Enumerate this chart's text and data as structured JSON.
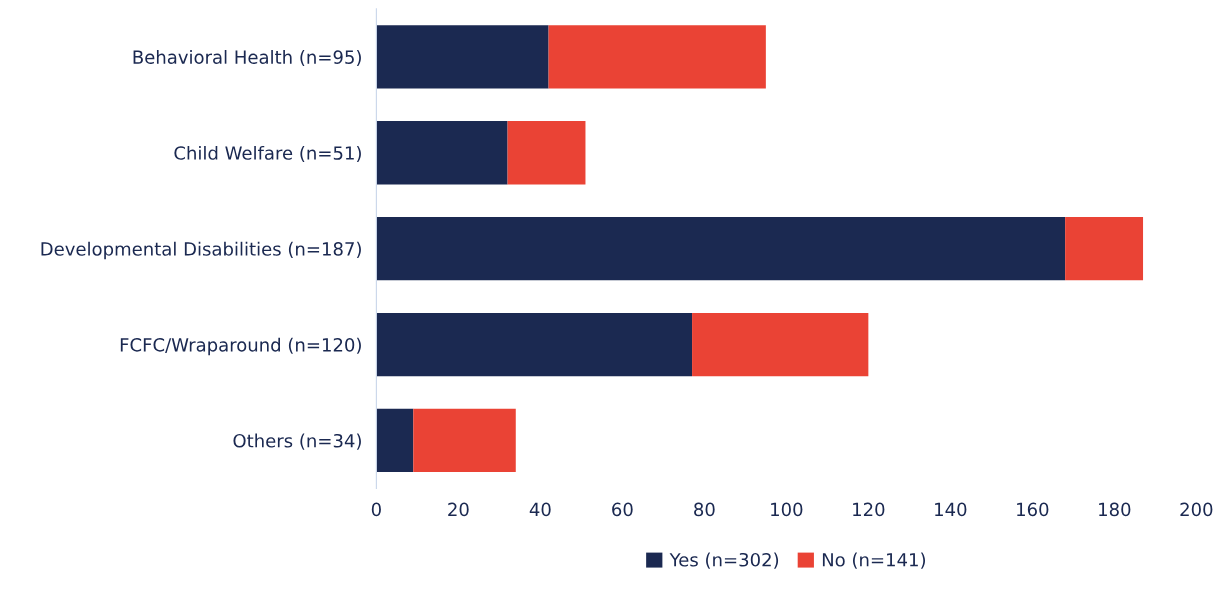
{
  "chart_data": {
    "type": "bar",
    "orientation": "horizontal",
    "stacked": true,
    "categories": [
      "Behavioral Health (n=95)",
      "Child Welfare (n=51)",
      "Developmental Disabilities (n=187)",
      "FCFC/Wraparound (n=120)",
      "Others (n=34)"
    ],
    "series": [
      {
        "name": "Yes (n=302)",
        "color": "#1b2951",
        "values": [
          42,
          32,
          168,
          77,
          9
        ]
      },
      {
        "name": "No (n=141)",
        "color": "#ea4335",
        "values": [
          53,
          19,
          19,
          43,
          25
        ]
      }
    ],
    "xlim": [
      0,
      200
    ],
    "xticks": [
      0,
      20,
      40,
      60,
      80,
      100,
      120,
      140,
      160,
      180,
      200
    ],
    "grid": false,
    "legend": "bottom"
  }
}
